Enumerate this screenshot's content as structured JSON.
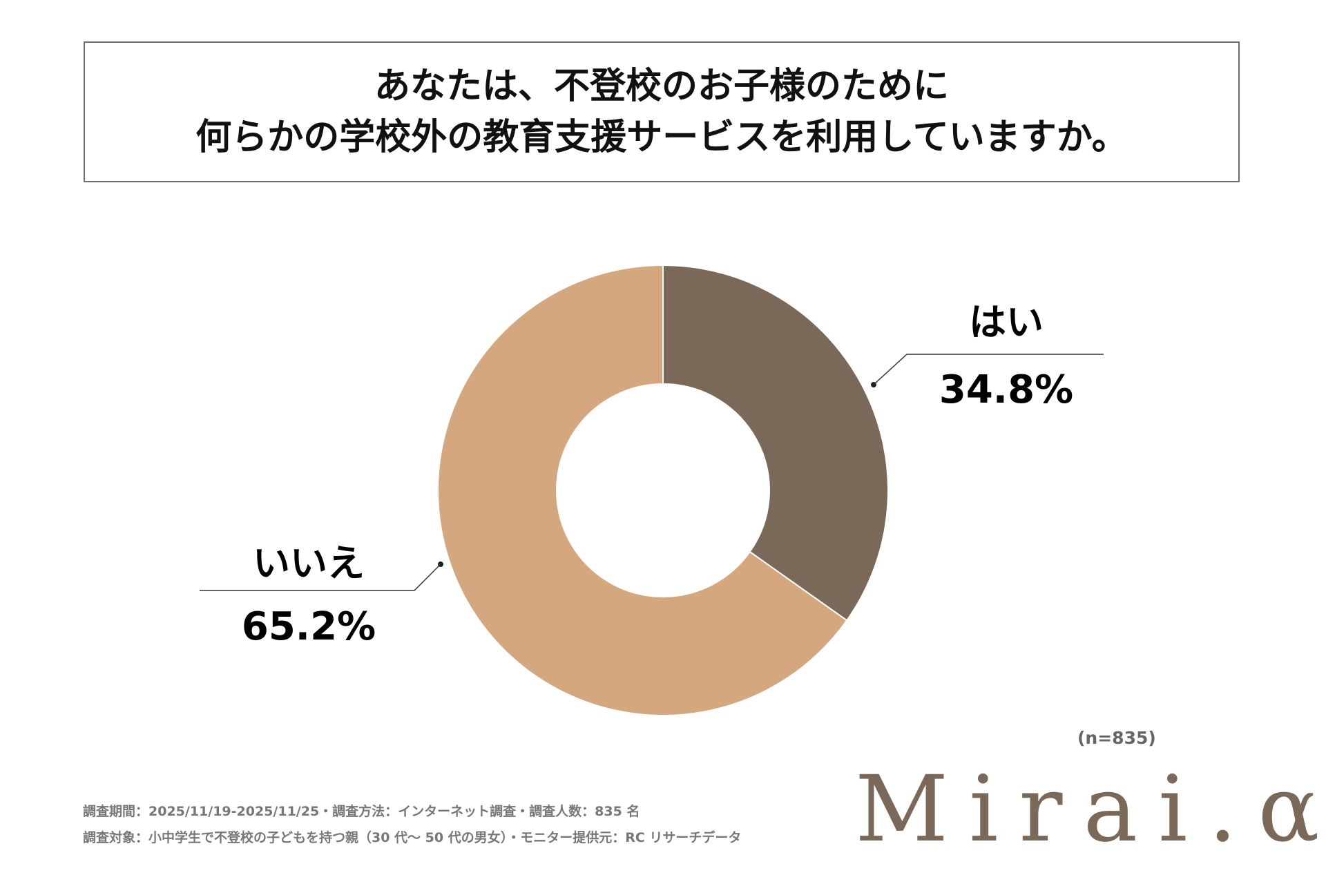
{
  "title": {
    "line1": "あなたは、不登校のお子様のために",
    "line2": "何らかの学校外の教育支援サービスを利用していますか。"
  },
  "chart_data": {
    "type": "pie",
    "donut": true,
    "categories": [
      "はい",
      "いいえ"
    ],
    "values": [
      34.8,
      65.2
    ],
    "labels": [
      "34.8%",
      "65.2%"
    ],
    "colors": [
      "#7a6858",
      "#d4a77e"
    ]
  },
  "sample_size": "(n=835)",
  "footer": {
    "line1": "調査期間：2025/11/19-2025/11/25・調査方法：インターネット調査・調査人数：835 名",
    "line2": "調査対象：小中学生で不登校の子どもを持つ親（30 代～ 50 代の男女）・モニター提供元：RC リサーチデータ"
  },
  "logo": {
    "text": "Mirai.α",
    "dot_color": "#7fb0c8"
  }
}
